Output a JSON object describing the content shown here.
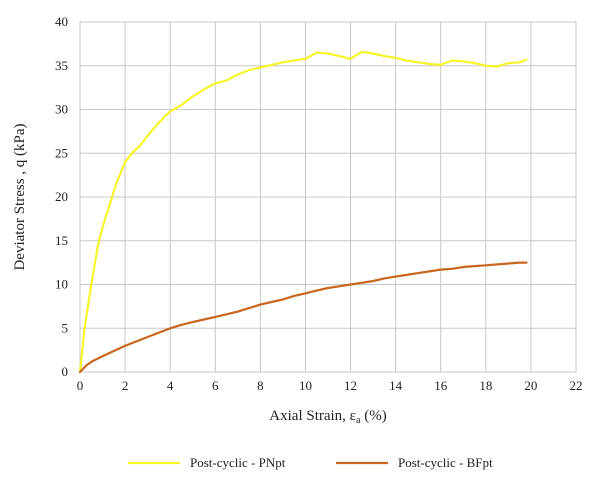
{
  "chart_data": {
    "type": "line",
    "xlabel_main": "Axial Strain, ε",
    "xlabel_sub": "a",
    "xlabel_unit": " (%)",
    "ylabel": "Deviator Stress , q (kPa)",
    "xlim": [
      0,
      22
    ],
    "ylim": [
      0,
      40
    ],
    "x_ticks": [
      "0",
      "2",
      "4",
      "6",
      "8",
      "10",
      "12",
      "14",
      "16",
      "18",
      "20",
      "22"
    ],
    "y_ticks": [
      "0",
      "5",
      "10",
      "15",
      "20",
      "25",
      "30",
      "35",
      "40"
    ],
    "grid": true,
    "legend_position": "bottom",
    "series": [
      {
        "name": "Post-cyclic - PNpt",
        "color": "#f5f52a",
        "x": [
          0,
          0.2,
          0.5,
          0.8,
          1.0,
          1.3,
          1.6,
          2.0,
          2.3,
          2.7,
          3.0,
          3.5,
          4.0,
          4.5,
          5.0,
          5.5,
          6.0,
          6.5,
          7.0,
          7.5,
          8.0,
          8.5,
          9.0,
          9.5,
          10.0,
          10.5,
          11.0,
          11.5,
          12.0,
          12.5,
          13.0,
          13.5,
          14.0,
          14.5,
          15.0,
          15.5,
          16.0,
          16.5,
          17.0,
          17.5,
          18.0,
          18.5,
          19.0,
          19.5,
          19.8
        ],
        "y": [
          0,
          5,
          10,
          14.5,
          16.5,
          19,
          21.5,
          24,
          25,
          26,
          27,
          28.5,
          29.8,
          30.5,
          31.5,
          32.3,
          33,
          33.3,
          34,
          34.5,
          34.8,
          35.1,
          35.4,
          35.6,
          35.8,
          36.5,
          36.4,
          36.1,
          35.8,
          36.6,
          36.4,
          36.1,
          35.9,
          35.6,
          35.4,
          35.2,
          35.1,
          35.6,
          35.5,
          35.3,
          35.0,
          34.9,
          35.3,
          35.4,
          35.7
        ]
      },
      {
        "name": "Post-cyclic - BFpt",
        "color": "#c9661e",
        "x": [
          0,
          0.3,
          0.6,
          1.0,
          1.5,
          2.0,
          2.5,
          3.0,
          3.5,
          4.0,
          4.5,
          5.0,
          5.5,
          6.0,
          6.5,
          7.0,
          7.5,
          8.0,
          8.5,
          9.0,
          9.5,
          10.0,
          10.5,
          11.0,
          11.5,
          12.0,
          12.5,
          13.0,
          13.5,
          14.0,
          14.5,
          15.0,
          15.5,
          16.0,
          16.5,
          17.0,
          17.5,
          18.0,
          18.5,
          19.0,
          19.5,
          19.8
        ],
        "y": [
          0,
          0.8,
          1.3,
          1.8,
          2.4,
          3.0,
          3.5,
          4.0,
          4.5,
          5.0,
          5.4,
          5.7,
          6.0,
          6.3,
          6.6,
          6.9,
          7.3,
          7.7,
          8.0,
          8.3,
          8.7,
          9.0,
          9.3,
          9.6,
          9.8,
          10.0,
          10.2,
          10.4,
          10.7,
          10.9,
          11.1,
          11.3,
          11.5,
          11.7,
          11.8,
          12.0,
          12.1,
          12.2,
          12.3,
          12.4,
          12.5,
          12.5
        ]
      }
    ]
  }
}
